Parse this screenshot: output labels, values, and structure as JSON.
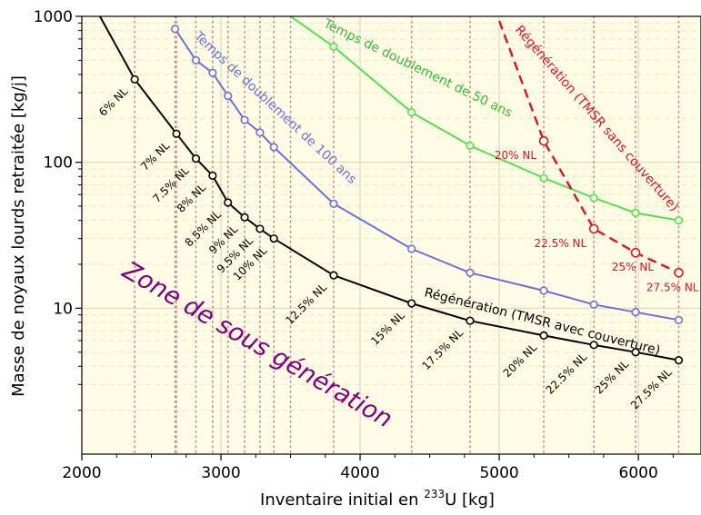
{
  "chart_data": {
    "type": "line",
    "xlabel": "Inventaire initial en",
    "xlabel_iso": "233",
    "xlabel_unit": "U [kg]",
    "ylabel": "Masse de noyaux lourds retraitée [kg/j]",
    "xlim": [
      2000,
      6450
    ],
    "ylim": [
      1,
      1000
    ],
    "y_scale": "log",
    "x_ticks": [
      "2000",
      "3000",
      "4000",
      "5000",
      "6000"
    ],
    "y_ticks": [
      "10",
      "100",
      "1000"
    ],
    "grid": true,
    "background": "#fffce6",
    "zone_label": "Zone de sous génération",
    "series": [
      {
        "name": "Régénération (TMSR avec couverture)",
        "color": "#000000",
        "style": "solid",
        "x": [
          2380,
          2680,
          2820,
          2940,
          3050,
          3170,
          3280,
          3380,
          3810,
          4370,
          4790,
          5320,
          5680,
          5980,
          6290
        ],
        "y": [
          370,
          157,
          106,
          81,
          53,
          42,
          35,
          30,
          16.8,
          10.8,
          8.2,
          6.5,
          5.6,
          5.0,
          4.4
        ],
        "point_labels": [
          "6% NL",
          "7% NL",
          "7.5% NL",
          "8% NL",
          "8.5% NL",
          "9% NL",
          "9.5% NL",
          "10% NL",
          "12.5% NL",
          "15% NL",
          "17.5% NL",
          "20% NL",
          "22.5% NL",
          "25% NL",
          "27.5% NL"
        ]
      },
      {
        "name": "Temps de doublement de 100 ans",
        "color": "#6a6fe0",
        "style": "solid",
        "x": [
          2670,
          2820,
          2940,
          3050,
          3170,
          3280,
          3380,
          3810,
          4370,
          4790,
          5320,
          5680,
          5980,
          6290
        ],
        "y": [
          820,
          500,
          410,
          285,
          195,
          160,
          127,
          52,
          25.5,
          17.5,
          13.2,
          10.6,
          9.4,
          8.3
        ]
      },
      {
        "name": "Temps de doublement de 50 ans",
        "color": "#50e050",
        "style": "solid",
        "x": [
          3500,
          3810,
          4370,
          4790,
          5320,
          5680,
          5980,
          6290
        ],
        "y": [
          1000,
          620,
          220,
          130,
          78,
          57,
          45,
          40
        ]
      },
      {
        "name": "Régénération (TMSR sans couverture)",
        "color": "#dd1122",
        "style": "dashed",
        "x": [
          5000,
          5320,
          5680,
          5980,
          6290
        ],
        "y": [
          930,
          140,
          35,
          24,
          17.5
        ],
        "point_labels": [
          "",
          "20% NL",
          "22.5% NL",
          "25% NL",
          "27.5% NL"
        ]
      }
    ]
  }
}
